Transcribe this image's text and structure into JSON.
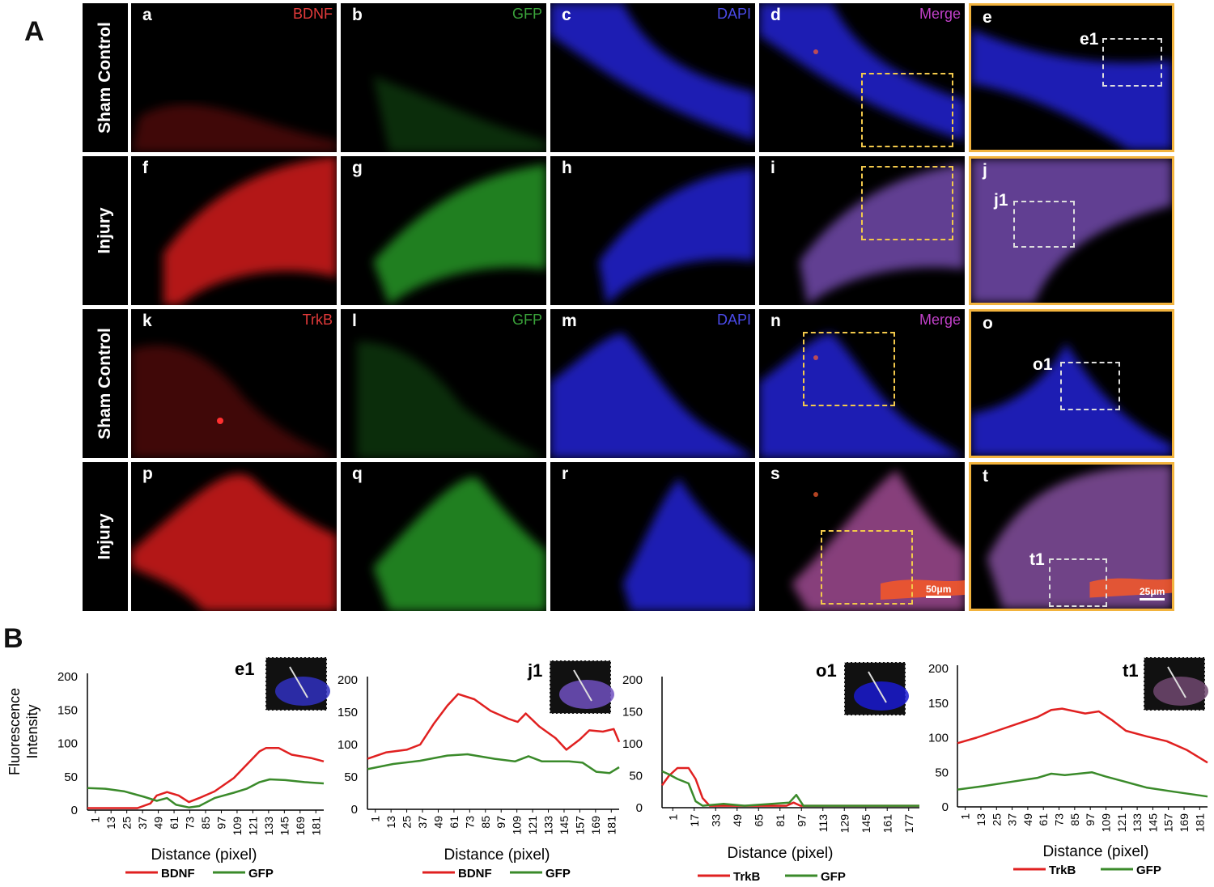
{
  "panel_a_label": "A",
  "panel_b_label": "B",
  "row_labels": [
    "Sham Control",
    "Injury",
    "Sham Control",
    "Injury"
  ],
  "rows": [
    {
      "cells": [
        {
          "tag": "a",
          "channel": "BDNF",
          "channel_color": "#e23a3a",
          "stain": "#ff2020",
          "pattern": "a"
        },
        {
          "tag": "b",
          "channel": "GFP",
          "channel_color": "#3aa23a",
          "stain": "#2fb52f",
          "pattern": "b"
        },
        {
          "tag": "c",
          "channel": "DAPI",
          "channel_color": "#4a4ae8",
          "stain": "#2a2aff",
          "pattern": "c"
        },
        {
          "tag": "d",
          "channel": "Merge",
          "channel_color": "#c040c8",
          "stain": "#2a2aff",
          "pattern": "d"
        },
        {
          "tag": "e",
          "channel": "",
          "stain": "#2a2aff",
          "pattern": "e",
          "sub": "e1"
        }
      ]
    },
    {
      "cells": [
        {
          "tag": "f",
          "channel": "",
          "stain": "#ff2020",
          "pattern": "f"
        },
        {
          "tag": "g",
          "channel": "",
          "stain": "#2fb52f",
          "pattern": "g"
        },
        {
          "tag": "h",
          "channel": "",
          "stain": "#2a2aff",
          "pattern": "h"
        },
        {
          "tag": "i",
          "channel": "",
          "stain": "#8a5ad0",
          "pattern": "i"
        },
        {
          "tag": "j",
          "channel": "",
          "stain": "#8a5ad0",
          "pattern": "j",
          "sub": "j1"
        }
      ]
    },
    {
      "cells": [
        {
          "tag": "k",
          "channel": "TrkB",
          "channel_color": "#e23a3a",
          "stain": "#ff2020",
          "pattern": "k"
        },
        {
          "tag": "l",
          "channel": "GFP",
          "channel_color": "#3aa23a",
          "stain": "#2fb52f",
          "pattern": "l"
        },
        {
          "tag": "m",
          "channel": "DAPI",
          "channel_color": "#4a4ae8",
          "stain": "#2a2aff",
          "pattern": "m"
        },
        {
          "tag": "n",
          "channel": "Merge",
          "channel_color": "#c040c8",
          "stain": "#2a2aff",
          "pattern": "n"
        },
        {
          "tag": "o",
          "channel": "",
          "stain": "#2a2aff",
          "pattern": "o",
          "sub": "o1"
        }
      ]
    },
    {
      "cells": [
        {
          "tag": "p",
          "channel": "",
          "stain": "#ff2020",
          "pattern": "p"
        },
        {
          "tag": "q",
          "channel": "",
          "stain": "#2fb52f",
          "pattern": "q"
        },
        {
          "tag": "r",
          "channel": "",
          "stain": "#2a2aff",
          "pattern": "r"
        },
        {
          "tag": "s",
          "channel": "",
          "stain": "#c05ab0",
          "pattern": "s",
          "scale": "50μm"
        },
        {
          "tag": "t",
          "channel": "",
          "stain": "#a060c0",
          "pattern": "t",
          "sub": "t1",
          "scale": "25μm"
        }
      ]
    }
  ],
  "shared_ylabel": "Fluorescence Intensity",
  "chart_data": [
    {
      "type": "line",
      "title": "e1",
      "xlabel": "Distance (pixel)",
      "ylim": [
        0,
        200
      ],
      "yticks": [
        0,
        50,
        100,
        150,
        200
      ],
      "xticks": [
        "1",
        "13",
        "25",
        "37",
        "49",
        "61",
        "73",
        "85",
        "97",
        "109",
        "121",
        "133",
        "145",
        "169",
        "181"
      ],
      "x_max": 185,
      "series": [
        {
          "name": "BDNF",
          "color": "#e02020",
          "points": [
            [
              1,
              3
            ],
            [
              20,
              3
            ],
            [
              40,
              3
            ],
            [
              50,
              10
            ],
            [
              55,
              22
            ],
            [
              63,
              27
            ],
            [
              72,
              22
            ],
            [
              80,
              12
            ],
            [
              88,
              18
            ],
            [
              100,
              28
            ],
            [
              115,
              48
            ],
            [
              125,
              68
            ],
            [
              135,
              88
            ],
            [
              140,
              93
            ],
            [
              150,
              93
            ],
            [
              160,
              83
            ],
            [
              175,
              78
            ],
            [
              185,
              73
            ]
          ]
        },
        {
          "name": "GFP",
          "color": "#3a8a2a",
          "points": [
            [
              1,
              33
            ],
            [
              15,
              32
            ],
            [
              30,
              28
            ],
            [
              45,
              20
            ],
            [
              55,
              14
            ],
            [
              63,
              18
            ],
            [
              70,
              8
            ],
            [
              80,
              4
            ],
            [
              88,
              6
            ],
            [
              100,
              18
            ],
            [
              115,
              26
            ],
            [
              125,
              32
            ],
            [
              135,
              42
            ],
            [
              143,
              46
            ],
            [
              155,
              45
            ],
            [
              170,
              42
            ],
            [
              185,
              40
            ]
          ]
        }
      ]
    },
    {
      "type": "line",
      "title": "j1",
      "xlabel": "Distance (pixel)",
      "ylim": [
        0,
        200
      ],
      "yticks": [
        0,
        50,
        100,
        150,
        200
      ],
      "xticks": [
        "1",
        "13",
        "25",
        "37",
        "49",
        "61",
        "73",
        "85",
        "97",
        "109",
        "121",
        "133",
        "145",
        "157",
        "169",
        "181"
      ],
      "x_max": 187,
      "series": [
        {
          "name": "BDNF",
          "color": "#e02020",
          "points": [
            [
              1,
              78
            ],
            [
              15,
              88
            ],
            [
              30,
              92
            ],
            [
              40,
              100
            ],
            [
              50,
              132
            ],
            [
              60,
              160
            ],
            [
              68,
              178
            ],
            [
              80,
              170
            ],
            [
              92,
              152
            ],
            [
              105,
              140
            ],
            [
              112,
              135
            ],
            [
              118,
              148
            ],
            [
              128,
              128
            ],
            [
              140,
              110
            ],
            [
              148,
              92
            ],
            [
              158,
              108
            ],
            [
              165,
              122
            ],
            [
              175,
              120
            ],
            [
              183,
              124
            ],
            [
              187,
              104
            ]
          ]
        },
        {
          "name": "GFP",
          "color": "#3a8a2a",
          "points": [
            [
              1,
              62
            ],
            [
              20,
              70
            ],
            [
              40,
              75
            ],
            [
              60,
              83
            ],
            [
              75,
              85
            ],
            [
              95,
              78
            ],
            [
              110,
              74
            ],
            [
              120,
              82
            ],
            [
              130,
              74
            ],
            [
              150,
              74
            ],
            [
              160,
              72
            ],
            [
              170,
              58
            ],
            [
              180,
              56
            ],
            [
              187,
              65
            ]
          ]
        }
      ]
    },
    {
      "type": "line",
      "title": "o1",
      "xlabel": "Distance (pixel)",
      "ylim": [
        0,
        200
      ],
      "yticks": [
        0,
        50,
        100,
        150,
        200
      ],
      "xticks": [
        "1",
        "17",
        "33",
        "49",
        "65",
        "81",
        "97",
        "113",
        "129",
        "145",
        "161",
        "177"
      ],
      "x_max": 185,
      "series": [
        {
          "name": "TrkB",
          "color": "#e02020",
          "points": [
            [
              1,
              35
            ],
            [
              6,
              50
            ],
            [
              12,
              62
            ],
            [
              20,
              62
            ],
            [
              25,
              45
            ],
            [
              30,
              15
            ],
            [
              35,
              3
            ],
            [
              60,
              3
            ],
            [
              90,
              3
            ],
            [
              95,
              8
            ],
            [
              100,
              3
            ],
            [
              130,
              3
            ],
            [
              185,
              3
            ]
          ]
        },
        {
          "name": "GFP",
          "color": "#3a8a2a",
          "points": [
            [
              1,
              57
            ],
            [
              6,
              52
            ],
            [
              12,
              45
            ],
            [
              20,
              38
            ],
            [
              25,
              10
            ],
            [
              30,
              3
            ],
            [
              45,
              6
            ],
            [
              60,
              3
            ],
            [
              92,
              8
            ],
            [
              97,
              20
            ],
            [
              102,
              3
            ],
            [
              130,
              3
            ],
            [
              185,
              3
            ]
          ]
        }
      ]
    },
    {
      "type": "line",
      "title": "t1",
      "xlabel": "Distance (pixel)",
      "ylim": [
        0,
        200
      ],
      "yticks": [
        0,
        50,
        100,
        150,
        200
      ],
      "xticks": [
        "1",
        "13",
        "25",
        "37",
        "49",
        "61",
        "73",
        "85",
        "97",
        "109",
        "121",
        "133",
        "145",
        "157",
        "169",
        "181"
      ],
      "x_max": 185,
      "series": [
        {
          "name": "TrkB",
          "color": "#e02020",
          "points": [
            [
              1,
              92
            ],
            [
              15,
              100
            ],
            [
              30,
              110
            ],
            [
              45,
              120
            ],
            [
              60,
              130
            ],
            [
              70,
              140
            ],
            [
              78,
              142
            ],
            [
              95,
              135
            ],
            [
              105,
              138
            ],
            [
              115,
              125
            ],
            [
              125,
              110
            ],
            [
              140,
              102
            ],
            [
              155,
              95
            ],
            [
              170,
              82
            ],
            [
              185,
              64
            ]
          ]
        },
        {
          "name": "GFP",
          "color": "#3a8a2a",
          "points": [
            [
              1,
              25
            ],
            [
              20,
              30
            ],
            [
              40,
              36
            ],
            [
              60,
              42
            ],
            [
              70,
              48
            ],
            [
              80,
              46
            ],
            [
              100,
              50
            ],
            [
              110,
              44
            ],
            [
              125,
              36
            ],
            [
              140,
              28
            ],
            [
              160,
              22
            ],
            [
              185,
              15
            ]
          ]
        }
      ]
    }
  ]
}
